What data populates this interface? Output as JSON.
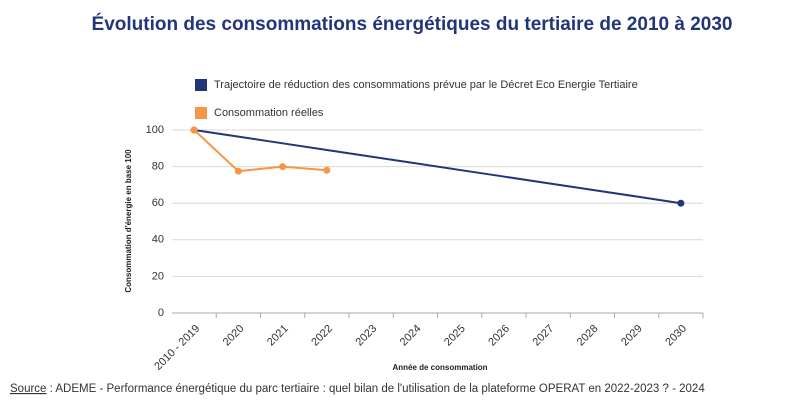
{
  "chart_data": {
    "type": "line",
    "title": "Évolution des consommations énergétiques du tertiaire de 2010 à 2030",
    "x_label": "Année de consommation",
    "y_label": "Consommation d'énergie en base 100",
    "categories": [
      "2010 - 2019",
      "2020",
      "2021",
      "2022",
      "2023",
      "2024",
      "2025",
      "2026",
      "2027",
      "2028",
      "2029",
      "2030"
    ],
    "series": [
      {
        "name": "Trajectoire de réduction des consommations prévue par le Décret Eco Energie Tertiaire",
        "color": "#22357a",
        "markers": "endpoints",
        "values": [
          100,
          96.36,
          92.73,
          89.09,
          85.45,
          81.82,
          78.18,
          74.55,
          70.91,
          67.27,
          63.64,
          60
        ]
      },
      {
        "name": "Consommation réelles",
        "color": "#f79646",
        "markers": "all",
        "values": [
          100,
          77.5,
          80,
          78,
          null,
          null,
          null,
          null,
          null,
          null,
          null,
          null
        ]
      }
    ],
    "ylim": [
      0,
      100
    ],
    "yticks": [
      0,
      20,
      40,
      60,
      80,
      100
    ],
    "grid": true,
    "legend": "top",
    "source_label": "Source",
    "source_text": " : ADEME - Performance énergétique du parc tertiaire : quel bilan de l'utilisation de la plateforme OPERAT en 2022-2023 ? - 2024"
  }
}
